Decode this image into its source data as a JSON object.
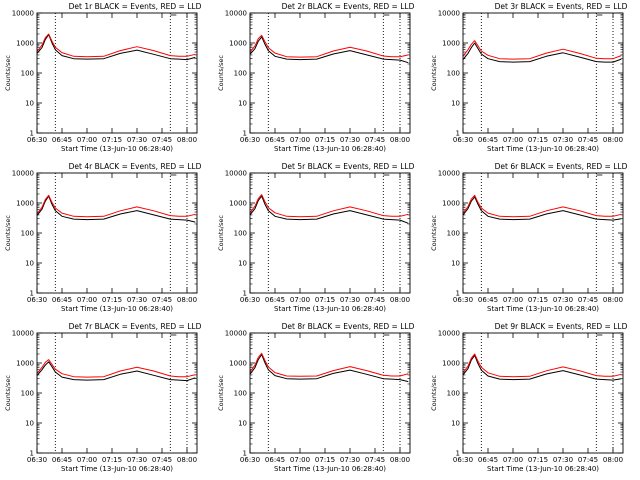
{
  "figure": {
    "start_time_label": "Start Time (13-Jun-10 06:28:40)",
    "colors": {
      "events": "#000000",
      "lld": "#ff0000",
      "axes": "#000000",
      "background": "#ffffff"
    }
  },
  "chart_data": [
    {
      "type": "line",
      "title": "Det 1r BLACK = Events, RED = LLD",
      "xlabel": "Start Time (13-Jun-10 06:28:40)",
      "ylabel": "Counts/sec",
      "x": [
        "06:30",
        "06:33",
        "06:35",
        "06:37",
        "06:39",
        "06:41",
        "06:45",
        "06:52",
        "07:00",
        "07:10",
        "07:20",
        "07:30",
        "07:40",
        "07:50",
        "07:55",
        "08:00",
        "08:05"
      ],
      "x_ticks": [
        "06:30",
        "06:45",
        "07:00",
        "07:15",
        "07:30",
        "07:45",
        "08:00"
      ],
      "y_ticks": [
        "1",
        "10",
        "100",
        "1000",
        "10000"
      ],
      "yscale": "log",
      "ylim": [
        1,
        10000
      ],
      "xlim": [
        "06:30",
        "08:06"
      ],
      "vlines": [
        "06:41",
        "07:50",
        "08:00"
      ],
      "grid": false,
      "series": [
        {
          "values": [
            450,
            700,
            1300,
            1900,
            1000,
            600,
            380,
            300,
            290,
            300,
            450,
            580,
            420,
            300,
            290,
            280,
            330
          ]
        },
        {
          "values": [
            520,
            850,
            1500,
            2000,
            1150,
            720,
            480,
            360,
            350,
            360,
            560,
            750,
            560,
            380,
            360,
            360,
            420
          ]
        }
      ]
    },
    {
      "type": "line",
      "title": "Det 2r BLACK = Events, RED = LLD",
      "xlabel": "Start Time (13-Jun-10 06:28:40)",
      "ylabel": "Counts/sec",
      "x": [
        "06:30",
        "06:33",
        "06:35",
        "06:37",
        "06:39",
        "06:41",
        "06:45",
        "06:52",
        "07:00",
        "07:10",
        "07:20",
        "07:30",
        "07:40",
        "07:50",
        "07:55",
        "08:00",
        "08:05"
      ],
      "x_ticks": [
        "06:30",
        "06:45",
        "07:00",
        "07:15",
        "07:30",
        "07:45",
        "08:00"
      ],
      "y_ticks": [
        "1",
        "10",
        "100",
        "1000",
        "10000"
      ],
      "yscale": "log",
      "ylim": [
        1,
        10000
      ],
      "xlim": [
        "06:30",
        "08:06"
      ],
      "vlines": [
        "06:41",
        "07:50",
        "08:00"
      ],
      "grid": false,
      "series": [
        {
          "values": [
            420,
            650,
            1150,
            1600,
            900,
            560,
            360,
            290,
            280,
            290,
            430,
            560,
            400,
            290,
            280,
            270,
            220
          ]
        },
        {
          "values": [
            500,
            800,
            1400,
            1800,
            1100,
            700,
            460,
            350,
            340,
            350,
            540,
            720,
            540,
            370,
            350,
            350,
            400
          ]
        }
      ]
    },
    {
      "type": "line",
      "title": "Det 3r BLACK = Events, RED = LLD",
      "xlabel": "Start Time (13-Jun-10 06:28:40)",
      "ylabel": "Counts/sec",
      "x": [
        "06:30",
        "06:33",
        "06:35",
        "06:37",
        "06:39",
        "06:41",
        "06:45",
        "06:52",
        "07:00",
        "07:10",
        "07:20",
        "07:30",
        "07:40",
        "07:50",
        "07:55",
        "08:00",
        "08:05"
      ],
      "x_ticks": [
        "06:30",
        "06:45",
        "07:00",
        "07:15",
        "07:30",
        "07:45",
        "08:00"
      ],
      "y_ticks": [
        "1",
        "10",
        "100",
        "1000",
        "10000"
      ],
      "yscale": "log",
      "ylim": [
        1,
        10000
      ],
      "xlim": [
        "06:30",
        "08:06"
      ],
      "vlines": [
        "06:41",
        "07:50",
        "08:00"
      ],
      "grid": false,
      "series": [
        {
          "values": [
            280,
            450,
            700,
            1000,
            650,
            430,
            300,
            240,
            230,
            240,
            360,
            470,
            340,
            240,
            230,
            230,
            290
          ]
        },
        {
          "values": [
            360,
            600,
            900,
            1200,
            800,
            540,
            390,
            300,
            290,
            300,
            460,
            620,
            450,
            310,
            300,
            300,
            380
          ]
        }
      ]
    },
    {
      "type": "line",
      "title": "Det 4r BLACK = Events, RED = LLD",
      "xlabel": "Start Time (13-Jun-10 06:28:40)",
      "ylabel": "Counts/sec",
      "x": [
        "06:30",
        "06:33",
        "06:35",
        "06:37",
        "06:39",
        "06:41",
        "06:45",
        "06:52",
        "07:00",
        "07:10",
        "07:20",
        "07:30",
        "07:40",
        "07:50",
        "07:55",
        "08:00",
        "08:05"
      ],
      "x_ticks": [
        "06:30",
        "06:45",
        "07:00",
        "07:15",
        "07:30",
        "07:45",
        "08:00"
      ],
      "y_ticks": [
        "1",
        "10",
        "100",
        "1000",
        "10000"
      ],
      "yscale": "log",
      "ylim": [
        1,
        10000
      ],
      "xlim": [
        "06:30",
        "08:06"
      ],
      "vlines": [
        "06:41",
        "07:50",
        "08:00"
      ],
      "grid": false,
      "series": [
        {
          "values": [
            380,
            620,
            1150,
            1700,
            900,
            560,
            360,
            290,
            280,
            290,
            430,
            560,
            400,
            290,
            280,
            270,
            230
          ]
        },
        {
          "values": [
            440,
            720,
            1300,
            1800,
            1050,
            680,
            460,
            360,
            350,
            360,
            550,
            740,
            550,
            380,
            360,
            360,
            420
          ]
        }
      ]
    },
    {
      "type": "line",
      "title": "Det 5r BLACK = Events, RED = LLD",
      "xlabel": "Start Time (13-Jun-10 06:28:40)",
      "ylabel": "Counts/sec",
      "x": [
        "06:30",
        "06:33",
        "06:35",
        "06:37",
        "06:39",
        "06:41",
        "06:45",
        "06:52",
        "07:00",
        "07:10",
        "07:20",
        "07:30",
        "07:40",
        "07:50",
        "07:55",
        "08:00",
        "08:05"
      ],
      "x_ticks": [
        "06:30",
        "06:45",
        "07:00",
        "07:15",
        "07:30",
        "07:45",
        "08:00"
      ],
      "y_ticks": [
        "1",
        "10",
        "100",
        "1000",
        "10000"
      ],
      "yscale": "log",
      "ylim": [
        1,
        10000
      ],
      "xlim": [
        "06:30",
        "08:06"
      ],
      "vlines": [
        "06:41",
        "07:50",
        "08:00"
      ],
      "grid": false,
      "series": [
        {
          "values": [
            400,
            650,
            1200,
            1700,
            900,
            560,
            360,
            290,
            280,
            290,
            430,
            560,
            400,
            290,
            280,
            270,
            210
          ]
        },
        {
          "values": [
            470,
            780,
            1400,
            1900,
            1100,
            700,
            470,
            360,
            350,
            360,
            550,
            740,
            550,
            380,
            360,
            360,
            420
          ]
        }
      ]
    },
    {
      "type": "line",
      "title": "Det 6r BLACK = Events, RED = LLD",
      "xlabel": "Start Time (13-Jun-10 06:28:40)",
      "ylabel": "Counts/sec",
      "x": [
        "06:30",
        "06:33",
        "06:35",
        "06:37",
        "06:39",
        "06:41",
        "06:45",
        "06:52",
        "07:00",
        "07:10",
        "07:20",
        "07:30",
        "07:40",
        "07:50",
        "07:55",
        "08:00",
        "08:05"
      ],
      "x_ticks": [
        "06:30",
        "06:45",
        "07:00",
        "07:15",
        "07:30",
        "07:45",
        "08:00"
      ],
      "y_ticks": [
        "1",
        "10",
        "100",
        "1000",
        "10000"
      ],
      "yscale": "log",
      "ylim": [
        1,
        10000
      ],
      "xlim": [
        "06:30",
        "08:06"
      ],
      "vlines": [
        "06:41",
        "07:50",
        "08:00"
      ],
      "grid": false,
      "series": [
        {
          "values": [
            400,
            650,
            1150,
            1600,
            900,
            560,
            360,
            290,
            280,
            290,
            430,
            560,
            400,
            290,
            280,
            270,
            300
          ]
        },
        {
          "values": [
            460,
            760,
            1350,
            1800,
            1050,
            680,
            460,
            360,
            350,
            360,
            550,
            740,
            550,
            380,
            360,
            360,
            420
          ]
        }
      ]
    },
    {
      "type": "line",
      "title": "Det 7r BLACK = Events, RED = LLD",
      "xlabel": "Start Time (13-Jun-10 06:28:40)",
      "ylabel": "Counts/sec",
      "x": [
        "06:30",
        "06:33",
        "06:35",
        "06:37",
        "06:39",
        "06:41",
        "06:45",
        "06:52",
        "07:00",
        "07:10",
        "07:20",
        "07:30",
        "07:40",
        "07:50",
        "07:55",
        "08:00",
        "08:05"
      ],
      "x_ticks": [
        "06:30",
        "06:45",
        "07:00",
        "07:15",
        "07:30",
        "07:45",
        "08:00"
      ],
      "y_ticks": [
        "1",
        "10",
        "100",
        "1000",
        "10000"
      ],
      "yscale": "log",
      "ylim": [
        1,
        10000
      ],
      "xlim": [
        "06:30",
        "08:06"
      ],
      "vlines": [
        "06:41",
        "07:50",
        "08:00"
      ],
      "grid": false,
      "series": [
        {
          "values": [
            380,
            600,
            850,
            1100,
            750,
            500,
            340,
            280,
            270,
            280,
            420,
            540,
            390,
            280,
            270,
            260,
            320
          ]
        },
        {
          "values": [
            450,
            720,
            1050,
            1300,
            900,
            620,
            440,
            350,
            340,
            350,
            540,
            720,
            540,
            370,
            350,
            350,
            410
          ]
        }
      ]
    },
    {
      "type": "line",
      "title": "Det 8r BLACK = Events, RED = LLD",
      "xlabel": "Start Time (13-Jun-10 06:28:40)",
      "ylabel": "Counts/sec",
      "x": [
        "06:30",
        "06:33",
        "06:35",
        "06:37",
        "06:39",
        "06:41",
        "06:45",
        "06:52",
        "07:00",
        "07:10",
        "07:20",
        "07:30",
        "07:40",
        "07:50",
        "07:55",
        "08:00",
        "08:05"
      ],
      "x_ticks": [
        "06:30",
        "06:45",
        "07:00",
        "07:15",
        "07:30",
        "07:45",
        "08:00"
      ],
      "y_ticks": [
        "1",
        "10",
        "100",
        "1000",
        "10000"
      ],
      "yscale": "log",
      "ylim": [
        1,
        10000
      ],
      "xlim": [
        "06:30",
        "08:06"
      ],
      "vlines": [
        "06:41",
        "07:50",
        "08:00"
      ],
      "grid": false,
      "series": [
        {
          "values": [
            420,
            700,
            1300,
            1900,
            1000,
            600,
            380,
            300,
            290,
            300,
            450,
            580,
            420,
            300,
            290,
            280,
            240
          ]
        },
        {
          "values": [
            500,
            850,
            1550,
            2100,
            1200,
            740,
            480,
            370,
            360,
            370,
            560,
            760,
            560,
            390,
            370,
            370,
            440
          ]
        }
      ]
    },
    {
      "type": "line",
      "title": "Det 9r BLACK = Events, RED = LLD",
      "xlabel": "Start Time (13-Jun-10 06:28:40)",
      "ylabel": "Counts/sec",
      "x": [
        "06:30",
        "06:33",
        "06:35",
        "06:37",
        "06:39",
        "06:41",
        "06:45",
        "06:52",
        "07:00",
        "07:10",
        "07:20",
        "07:30",
        "07:40",
        "07:50",
        "07:55",
        "08:00",
        "08:05"
      ],
      "x_ticks": [
        "06:30",
        "06:45",
        "07:00",
        "07:15",
        "07:30",
        "07:45",
        "08:00"
      ],
      "y_ticks": [
        "1",
        "10",
        "100",
        "1000",
        "10000"
      ],
      "yscale": "log",
      "ylim": [
        1,
        10000
      ],
      "xlim": [
        "06:30",
        "08:06"
      ],
      "vlines": [
        "06:41",
        "07:50",
        "08:00"
      ],
      "grid": false,
      "series": [
        {
          "values": [
            400,
            650,
            1250,
            1800,
            950,
            580,
            370,
            290,
            280,
            290,
            430,
            560,
            400,
            290,
            280,
            270,
            300
          ]
        },
        {
          "values": [
            470,
            780,
            1450,
            2000,
            1150,
            720,
            470,
            360,
            350,
            360,
            550,
            740,
            550,
            380,
            360,
            360,
            420
          ]
        }
      ]
    }
  ]
}
